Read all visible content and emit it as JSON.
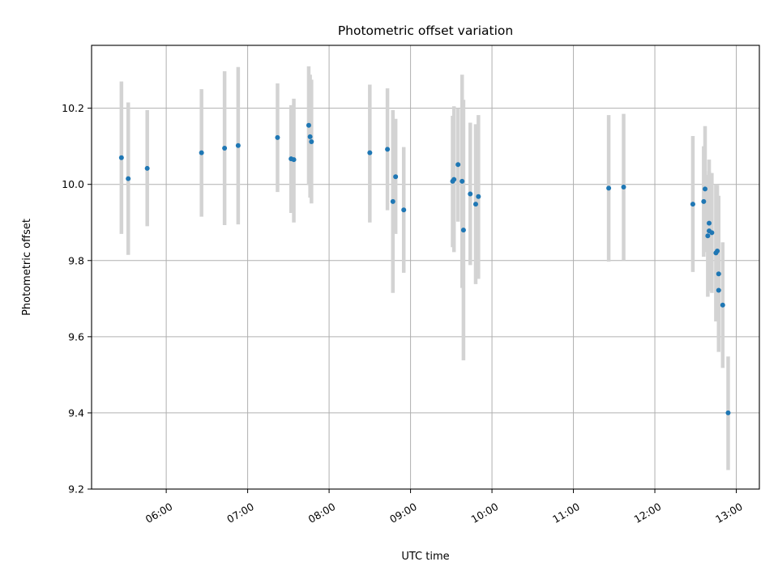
{
  "chart_data": {
    "type": "scatter",
    "title": "Photometric offset variation",
    "xlabel": "UTC time",
    "ylabel": "Photometric offset",
    "xlim": [
      "05:05",
      "13:17"
    ],
    "ylim": [
      9.2,
      10.365
    ],
    "x_ticks": [
      "06:00",
      "07:00",
      "08:00",
      "09:00",
      "10:00",
      "11:00",
      "12:00",
      "13:00"
    ],
    "y_ticks": [
      9.2,
      9.4,
      9.6,
      9.8,
      10.0,
      10.2
    ],
    "y_tick_labels": [
      "9.2",
      "9.4",
      "9.6",
      "9.8",
      "10.0",
      "10.2"
    ],
    "grid": true,
    "colors": {
      "points": "#1f77b4",
      "error_bars": "#d3d3d3",
      "grid": "#b0b0b0"
    },
    "series": [
      {
        "points": [
          {
            "x": "05:27",
            "y": 10.07,
            "lo": 9.87,
            "hi": 10.27
          },
          {
            "x": "05:32",
            "y": 10.015,
            "lo": 9.815,
            "hi": 10.215
          },
          {
            "x": "05:46",
            "y": 10.042,
            "lo": 9.89,
            "hi": 10.195
          },
          {
            "x": "06:26",
            "y": 10.083,
            "lo": 9.915,
            "hi": 10.25
          },
          {
            "x": "06:43",
            "y": 10.095,
            "lo": 9.893,
            "hi": 10.297
          },
          {
            "x": "06:53",
            "y": 10.102,
            "lo": 9.895,
            "hi": 10.308
          },
          {
            "x": "07:22",
            "y": 10.123,
            "lo": 9.98,
            "hi": 10.265
          },
          {
            "x": "07:32",
            "y": 10.067,
            "lo": 9.925,
            "hi": 10.208
          },
          {
            "x": "07:34",
            "y": 10.065,
            "lo": 9.9,
            "hi": 10.225
          },
          {
            "x": "07:45",
            "y": 10.155,
            "lo": 9.998,
            "hi": 10.31
          },
          {
            "x": "07:46",
            "y": 10.125,
            "lo": 9.965,
            "hi": 10.288
          },
          {
            "x": "07:47",
            "y": 10.112,
            "lo": 9.95,
            "hi": 10.275
          },
          {
            "x": "08:30",
            "y": 10.083,
            "lo": 9.9,
            "hi": 10.262
          },
          {
            "x": "08:43",
            "y": 10.092,
            "lo": 9.932,
            "hi": 10.252
          },
          {
            "x": "08:47",
            "y": 9.955,
            "lo": 9.715,
            "hi": 10.195
          },
          {
            "x": "08:49",
            "y": 10.02,
            "lo": 9.87,
            "hi": 10.172
          },
          {
            "x": "08:55",
            "y": 9.933,
            "lo": 9.768,
            "hi": 10.098
          },
          {
            "x": "09:31",
            "y": 10.008,
            "lo": 9.835,
            "hi": 10.18
          },
          {
            "x": "09:32",
            "y": 10.013,
            "lo": 9.822,
            "hi": 10.205
          },
          {
            "x": "09:35",
            "y": 10.052,
            "lo": 9.902,
            "hi": 10.2
          },
          {
            "x": "09:38",
            "y": 10.008,
            "lo": 9.728,
            "hi": 10.288
          },
          {
            "x": "09:39",
            "y": 9.88,
            "lo": 9.538,
            "hi": 10.222
          },
          {
            "x": "09:44",
            "y": 9.975,
            "lo": 9.788,
            "hi": 10.162
          },
          {
            "x": "09:48",
            "y": 9.948,
            "lo": 9.738,
            "hi": 10.158
          },
          {
            "x": "09:50",
            "y": 9.968,
            "lo": 9.752,
            "hi": 10.182
          },
          {
            "x": "11:26",
            "y": 9.99,
            "lo": 9.797,
            "hi": 10.182
          },
          {
            "x": "11:37",
            "y": 9.993,
            "lo": 9.8,
            "hi": 10.185
          },
          {
            "x": "12:28",
            "y": 9.948,
            "lo": 9.77,
            "hi": 10.127
          },
          {
            "x": "12:36",
            "y": 9.955,
            "lo": 9.81,
            "hi": 10.1
          },
          {
            "x": "12:37",
            "y": 9.988,
            "lo": 9.822,
            "hi": 10.153
          },
          {
            "x": "12:39",
            "y": 9.865,
            "lo": 9.705,
            "hi": 10.025
          },
          {
            "x": "12:40",
            "y": 9.898,
            "lo": 9.73,
            "hi": 10.065
          },
          {
            "x": "12:40",
            "y": 9.878,
            "lo": 9.72,
            "hi": 10.035
          },
          {
            "x": "12:42",
            "y": 9.873,
            "lo": 9.715,
            "hi": 10.03
          },
          {
            "x": "12:45",
            "y": 9.82,
            "lo": 9.64,
            "hi": 10.0
          },
          {
            "x": "12:46",
            "y": 9.825,
            "lo": 9.65,
            "hi": 9.998
          },
          {
            "x": "12:47",
            "y": 9.765,
            "lo": 9.56,
            "hi": 9.97
          },
          {
            "x": "12:47",
            "y": 9.722,
            "lo": 9.57,
            "hi": 9.873
          },
          {
            "x": "12:50",
            "y": 9.683,
            "lo": 9.518,
            "hi": 9.848
          },
          {
            "x": "12:54",
            "y": 9.4,
            "lo": 9.25,
            "hi": 9.548
          }
        ]
      }
    ]
  }
}
